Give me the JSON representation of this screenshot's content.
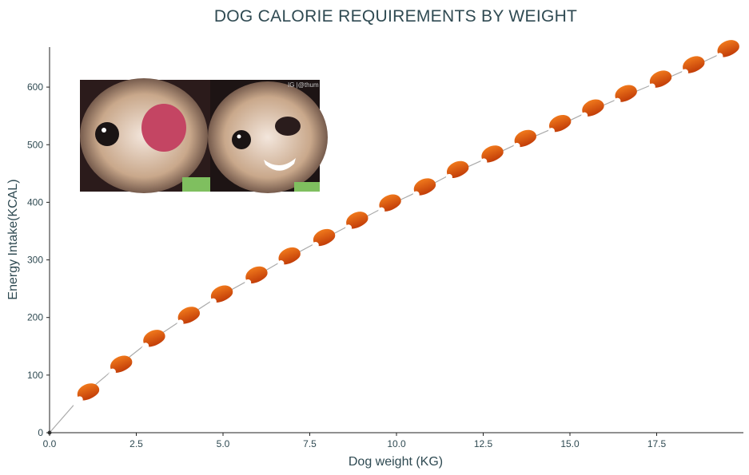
{
  "chart_data": {
    "type": "line",
    "title": "DOG CALORIE REQUIREMENTS BY WEIGHT",
    "xlabel": "Dog weight (KG)",
    "ylabel": "Energy Intake(KCAL)",
    "xlim": [
      0,
      20
    ],
    "ylim": [
      0,
      670
    ],
    "xticks": [
      0,
      2.5,
      5,
      7.5,
      10,
      12.5,
      15,
      17.5
    ],
    "xtick_labels": [
      "0.0",
      "2.5",
      "5.0",
      "7.5",
      "10.0",
      "12.5",
      "15.0",
      "17.5"
    ],
    "yticks": [
      0,
      100,
      200,
      300,
      400,
      500,
      600
    ],
    "ytick_labels": [
      "0",
      "100",
      "200",
      "300",
      "400",
      "500",
      "600"
    ],
    "grid": false,
    "marker_icon": "drumstick-icon",
    "line_color": "#aaaaaa",
    "marker_color": "#e0560f",
    "x": [
      0,
      0.9,
      1.85,
      2.8,
      3.8,
      4.75,
      5.75,
      6.7,
      7.7,
      8.65,
      9.6,
      10.6,
      11.55,
      12.55,
      13.5,
      14.5,
      15.45,
      16.4,
      17.4,
      18.35,
      19.35
    ],
    "y": [
      0,
      62,
      110,
      155,
      195,
      232,
      265,
      298,
      330,
      360,
      390,
      418,
      448,
      475,
      502,
      528,
      555,
      580,
      605,
      630,
      658
    ]
  },
  "inset_image": {
    "description_icon": "chihuahua-photo",
    "watermark": "IG |@thum"
  },
  "colors": {
    "text": "#2f4a52",
    "axis": "#222222"
  }
}
